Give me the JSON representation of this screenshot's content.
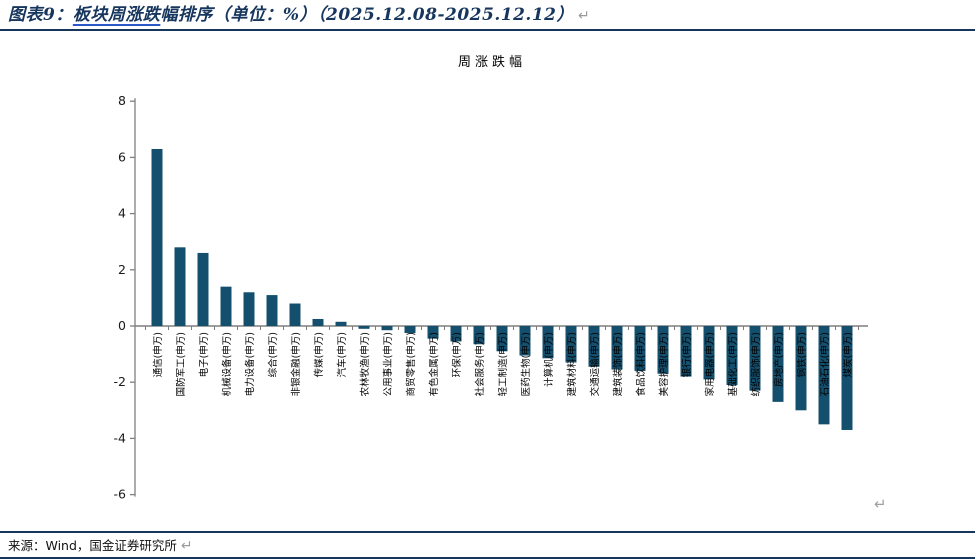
{
  "page": {
    "header": {
      "prefix": "图表9：",
      "underlined": "板块周涨跌",
      "rest": "幅排序（单位：%）（2025.12.08-2025.12.12）",
      "return_mark": "↵"
    },
    "chart_return_mark": "↵",
    "footer": {
      "source": "来源：Wind，国金证券研究所",
      "return_mark": "↵"
    }
  },
  "colors": {
    "bar": "#14506e",
    "axis": "#7f7f7f",
    "tick_label": "#1a1a1a",
    "category_label": "#000000",
    "chart_title": "#000000",
    "header_text": "#17365d",
    "rule": "#17365d",
    "link_underline": "#2b57c8",
    "return_mark": "#9a9a9a"
  },
  "chart_data": {
    "type": "bar",
    "title": "周涨跌幅",
    "unit": "%",
    "grid": false,
    "ylim": [
      -6,
      8
    ],
    "yticks": [
      8,
      6,
      4,
      2,
      0,
      -2,
      -4,
      -6
    ],
    "categories": [
      "通信(申万)",
      "国防军工(申万)",
      "电子(申万)",
      "机械设备(申万)",
      "电力设备(申万)",
      "综合(申万)",
      "非银金融(申万)",
      "传媒(申万)",
      "汽车(申万)",
      "农林牧渔(申万)",
      "公用事业(申万)",
      "商贸零售(申万)",
      "有色金属(申万)",
      "环保(申万)",
      "社会服务(申万)",
      "轻工制造(申万)",
      "医药生物(申万)",
      "计算机(申万)",
      "建筑材料(申万)",
      "交通运输(申万)",
      "建筑装饰(申万)",
      "食品饮料(申万)",
      "美容护理(申万)",
      "银行(申万)",
      "家用电器(申万)",
      "基础化工(申万)",
      "纺织服饰(申万)",
      "房地产(申万)",
      "钢铁(申万)",
      "石油石化(申万)",
      "煤炭(申万)"
    ],
    "values": [
      6.3,
      2.8,
      2.6,
      1.4,
      1.2,
      1.1,
      0.8,
      0.25,
      0.15,
      -0.1,
      -0.15,
      -0.25,
      -0.45,
      -0.55,
      -0.65,
      -0.9,
      -1.05,
      -1.15,
      -1.3,
      -1.45,
      -1.55,
      -1.6,
      -1.7,
      -1.8,
      -1.9,
      -2.1,
      -2.3,
      -2.7,
      -3.0,
      -3.5,
      -3.7
    ]
  }
}
